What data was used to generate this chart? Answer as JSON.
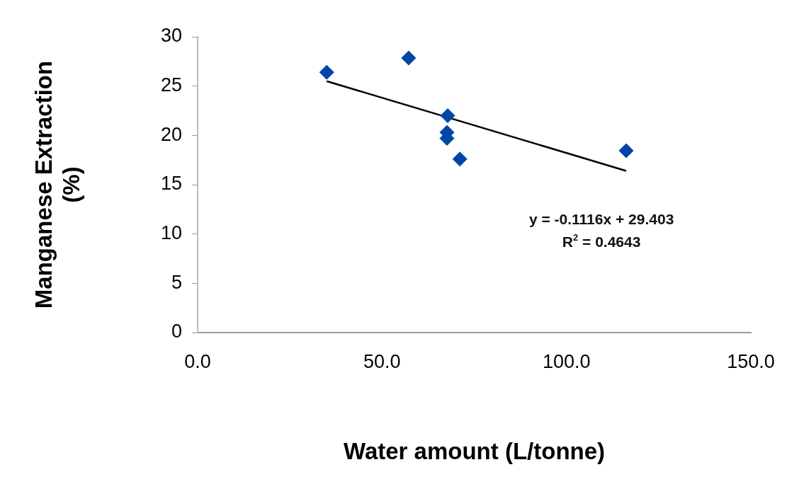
{
  "chart_data": {
    "type": "scatter",
    "xlabel": "Water amount (L/tonne)",
    "ylabel": "Manganese Extraction (%)",
    "x": [
      35,
      57.2,
      67.8,
      67.6,
      67.6,
      71.1,
      116.2
    ],
    "series": [
      {
        "color": "#0046a8",
        "values": [
          26.4,
          27.85,
          22.0,
          20.3,
          19.7,
          17.6,
          18.45
        ]
      },
      {
        "type": "line",
        "color": "#000000",
        "marker": "none",
        "x": [
          35,
          116.2
        ],
        "values": [
          25.5,
          16.4
        ]
      }
    ],
    "marker": "diamond",
    "legend": false,
    "grid": false,
    "xlim": [
      0,
      150
    ],
    "xticks": [
      {
        "value": 0,
        "label": "0.0"
      },
      {
        "value": 50,
        "label": "50.0"
      },
      {
        "value": 100,
        "label": "100.0"
      },
      {
        "value": 150,
        "label": "150.0"
      }
    ],
    "ylim": [
      0,
      30
    ],
    "yticks": [
      0,
      5,
      10,
      15,
      20,
      25,
      30
    ],
    "annotations": [
      "y = -0.1116x + 29.403",
      "R$^{2}$ = 0.4643"
    ]
  }
}
